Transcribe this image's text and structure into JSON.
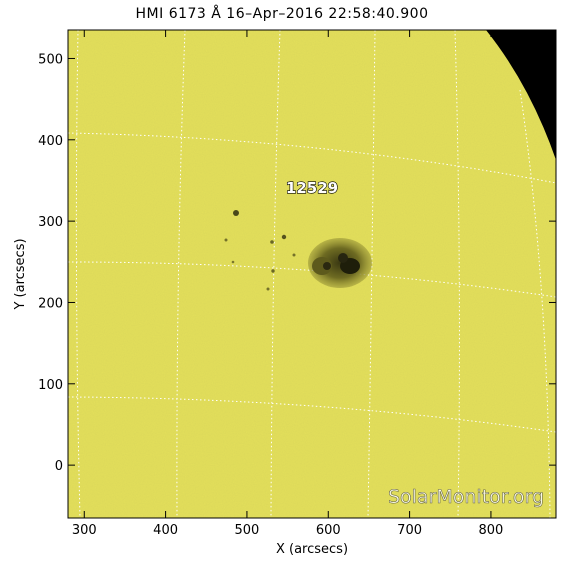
{
  "title": "HMI 6173 Å 16–Apr–2016 22:58:40.900",
  "colors": {
    "photosphere": "#e4e05a",
    "space": "#000000",
    "grid": "#ffffff",
    "spot_umbra": "#1e1e0a",
    "spot_penumbra": "#6e6b22"
  },
  "axes": {
    "xlabel": "X (arcsecs)",
    "ylabel": "Y (arcsecs)",
    "xlim": [
      280,
      880
    ],
    "ylim": [
      -65,
      535
    ],
    "xticks": [
      "300",
      "400",
      "500",
      "600",
      "700",
      "800"
    ],
    "yticks": [
      "0",
      "100",
      "200",
      "300",
      "400",
      "500"
    ]
  },
  "active_region": {
    "number": "12529"
  },
  "watermark": "SolarMonitor.org"
}
